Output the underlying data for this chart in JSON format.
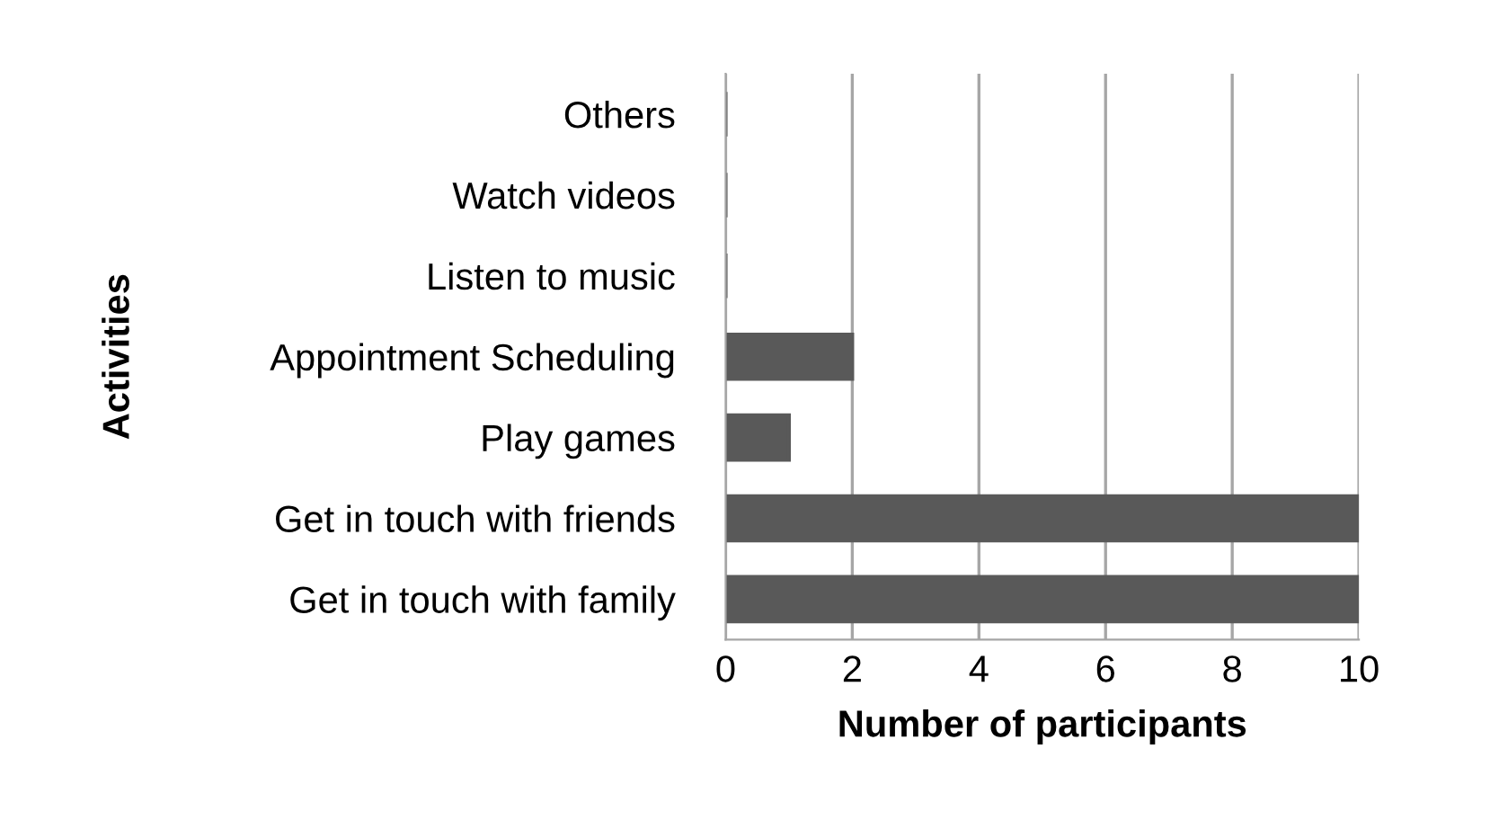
{
  "chart_data": {
    "type": "bar",
    "orientation": "horizontal",
    "xlabel": "Number of participants",
    "ylabel": "Activities",
    "categories": [
      "Others",
      "Watch videos",
      "Listen to music",
      "Appointment Scheduling",
      "Play games",
      "Get in touch with friends",
      "Get in touch with family"
    ],
    "values": [
      0,
      0,
      0,
      2,
      1,
      10,
      10
    ],
    "color": "#595959",
    "xlim": [
      0,
      10
    ],
    "xticks": [
      0,
      2,
      4,
      6,
      8,
      10
    ],
    "grid": "x"
  }
}
